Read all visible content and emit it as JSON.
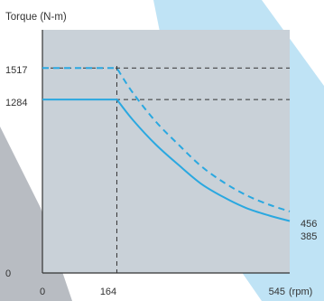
{
  "chart_data": {
    "type": "line",
    "ylabel": "Torque (N-m)",
    "xlabel": "(rpm)",
    "x_ticks": [
      "0",
      "164",
      "545"
    ],
    "y_ticks": [
      "0",
      "1284",
      "1517"
    ],
    "xlim": [
      0,
      545
    ],
    "ylim": [
      0,
      1800
    ],
    "corner_point": {
      "rpm": 164
    },
    "series": [
      {
        "style": "solid",
        "color": "#2aa8e0",
        "start": 1284,
        "end": 385,
        "end_label": "385",
        "points": [
          [
            0,
            1284
          ],
          [
            164,
            1284
          ],
          [
            200,
            1130
          ],
          [
            250,
            950
          ],
          [
            300,
            800
          ],
          [
            350,
            660
          ],
          [
            400,
            560
          ],
          [
            450,
            480
          ],
          [
            500,
            425
          ],
          [
            545,
            385
          ]
        ]
      },
      {
        "style": "dashed",
        "color": "#2aa8e0",
        "start": 1517,
        "end": 456,
        "end_label": "456",
        "points": [
          [
            0,
            1517
          ],
          [
            164,
            1517
          ],
          [
            200,
            1330
          ],
          [
            250,
            1120
          ],
          [
            300,
            950
          ],
          [
            350,
            790
          ],
          [
            400,
            670
          ],
          [
            450,
            575
          ],
          [
            500,
            505
          ],
          [
            545,
            456
          ]
        ]
      }
    ],
    "reference_lines": [
      {
        "orientation": "horizontal",
        "value": 1517
      },
      {
        "orientation": "horizontal",
        "value": 1284
      },
      {
        "orientation": "vertical",
        "value": 164
      }
    ],
    "grid": false,
    "legend": "none"
  },
  "colors": {
    "page_background": "#ffffff",
    "plot_background": "#c9d1d8",
    "accent_light_blue": "#bfe3f5",
    "accent_gray": "#b8bcc2",
    "curve": "#2aa8e0",
    "axis": "#333333"
  }
}
